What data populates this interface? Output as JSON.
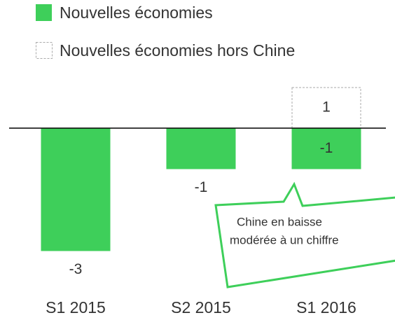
{
  "chart_data": {
    "type": "bar",
    "categories": [
      "S1 2015",
      "S2 2015",
      "S1 2016"
    ],
    "series": [
      {
        "name": "Nouvelles économies",
        "color": "#3ecf5a",
        "values": [
          -3,
          -1,
          -1
        ]
      },
      {
        "name": "Nouvelles économies hors Chine",
        "color": "#aaaaaa",
        "values": [
          null,
          null,
          1
        ]
      }
    ],
    "annotations": [
      "Chine en baisse",
      "modérée à un chiffre"
    ]
  }
}
